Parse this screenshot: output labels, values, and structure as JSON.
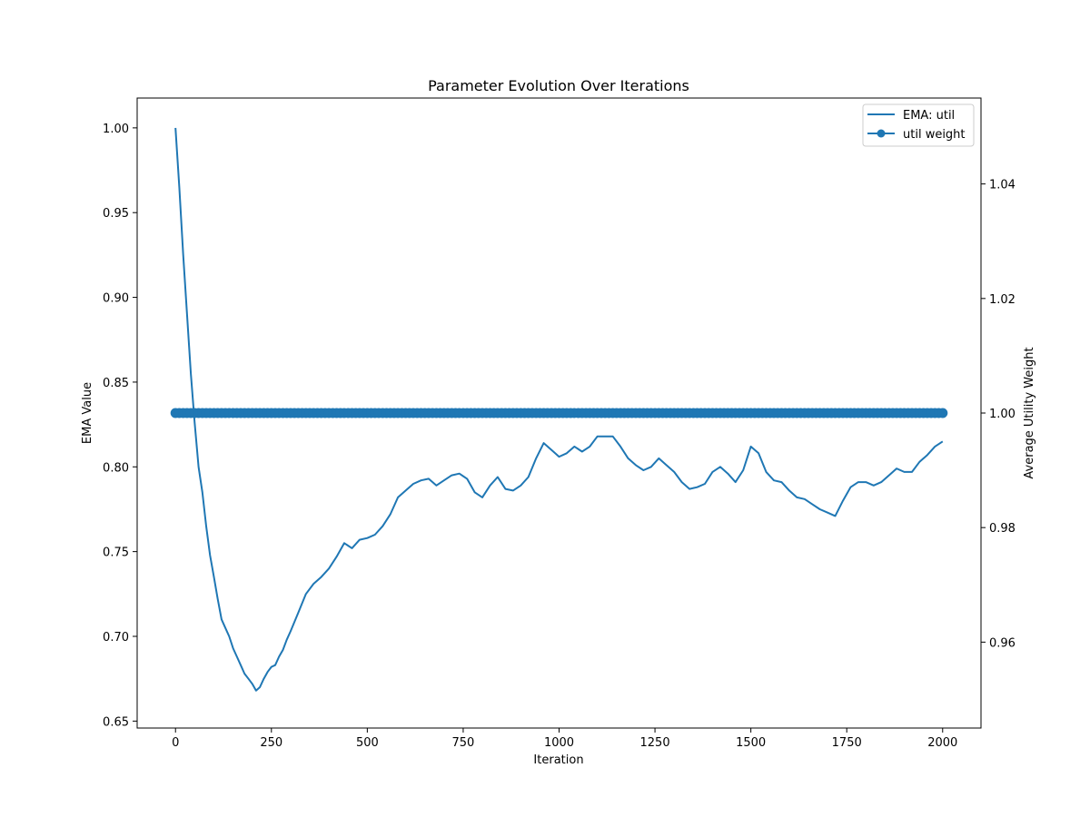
{
  "chart_data": {
    "type": "line",
    "title": "Parameter Evolution Over Iterations",
    "xlabel": "Iteration",
    "ylabel": "EMA Value",
    "ylabel_right": "Average Utility Weight",
    "xlim": [
      -100,
      2100
    ],
    "ylim": [
      0.6459,
      1.0176
    ],
    "ylim_right": [
      0.945,
      1.055
    ],
    "xticks": [
      0,
      250,
      500,
      750,
      1000,
      1250,
      1500,
      1750,
      2000
    ],
    "yticks": [
      0.65,
      0.7,
      0.75,
      0.8,
      0.85,
      0.9,
      0.95,
      1.0
    ],
    "yticks_right": [
      0.96,
      0.98,
      1.0,
      1.02,
      1.04
    ],
    "xtick_labels": [
      "0",
      "250",
      "500",
      "750",
      "1000",
      "1250",
      "1500",
      "1750",
      "2000"
    ],
    "ytick_labels": [
      "0.65",
      "0.70",
      "0.75",
      "0.80",
      "0.85",
      "0.90",
      "0.95",
      "1.00"
    ],
    "ytick_labels_right": [
      "0.96",
      "0.98",
      "1.00",
      "1.02",
      "1.04"
    ],
    "grid": false,
    "legend_position": "top-right",
    "series": [
      {
        "name": "EMA: util",
        "axis": "left",
        "color": "#1f77b4",
        "marker": "none",
        "x": [
          0,
          10,
          20,
          30,
          40,
          50,
          60,
          70,
          80,
          90,
          100,
          110,
          120,
          130,
          140,
          150,
          160,
          170,
          180,
          190,
          200,
          210,
          220,
          230,
          240,
          250,
          260,
          270,
          280,
          290,
          300,
          320,
          340,
          360,
          380,
          400,
          420,
          440,
          460,
          480,
          500,
          520,
          540,
          560,
          580,
          600,
          620,
          640,
          660,
          680,
          700,
          720,
          740,
          760,
          780,
          800,
          820,
          840,
          860,
          880,
          900,
          920,
          940,
          960,
          980,
          1000,
          1020,
          1040,
          1060,
          1080,
          1100,
          1120,
          1140,
          1160,
          1180,
          1200,
          1220,
          1240,
          1260,
          1280,
          1300,
          1320,
          1340,
          1360,
          1380,
          1400,
          1420,
          1440,
          1460,
          1480,
          1500,
          1520,
          1540,
          1560,
          1580,
          1600,
          1620,
          1640,
          1660,
          1680,
          1700,
          1720,
          1740,
          1760,
          1780,
          1800,
          1820,
          1840,
          1860,
          1880,
          1900,
          1920,
          1940,
          1960,
          1980,
          2000
        ],
        "values": [
          1.0,
          0.965,
          0.925,
          0.89,
          0.855,
          0.826,
          0.8,
          0.785,
          0.765,
          0.748,
          0.735,
          0.722,
          0.71,
          0.705,
          0.7,
          0.693,
          0.688,
          0.683,
          0.678,
          0.675,
          0.672,
          0.668,
          0.67,
          0.675,
          0.679,
          0.682,
          0.683,
          0.688,
          0.692,
          0.698,
          0.703,
          0.714,
          0.725,
          0.731,
          0.735,
          0.74,
          0.747,
          0.755,
          0.752,
          0.757,
          0.758,
          0.76,
          0.765,
          0.772,
          0.782,
          0.786,
          0.79,
          0.792,
          0.793,
          0.789,
          0.792,
          0.795,
          0.796,
          0.793,
          0.785,
          0.782,
          0.789,
          0.794,
          0.787,
          0.786,
          0.789,
          0.794,
          0.805,
          0.814,
          0.81,
          0.806,
          0.808,
          0.812,
          0.809,
          0.812,
          0.818,
          0.818,
          0.818,
          0.812,
          0.805,
          0.801,
          0.798,
          0.8,
          0.805,
          0.801,
          0.797,
          0.791,
          0.787,
          0.788,
          0.79,
          0.797,
          0.8,
          0.796,
          0.791,
          0.798,
          0.812,
          0.808,
          0.797,
          0.792,
          0.791,
          0.786,
          0.782,
          0.781,
          0.778,
          0.775,
          0.773,
          0.771,
          0.78,
          0.788,
          0.791,
          0.791,
          0.789,
          0.791,
          0.795,
          0.799,
          0.797,
          0.797,
          0.803,
          0.807,
          0.812,
          0.815
        ]
      },
      {
        "name": "util weight",
        "axis": "right",
        "color": "#1f77b4",
        "marker": "circle",
        "x_start": 0,
        "x_end": 2000,
        "value": 1.0
      }
    ]
  },
  "legend": {
    "items": [
      {
        "label": "EMA: util",
        "style": "line"
      },
      {
        "label": "util weight",
        "style": "line-marker"
      }
    ]
  }
}
